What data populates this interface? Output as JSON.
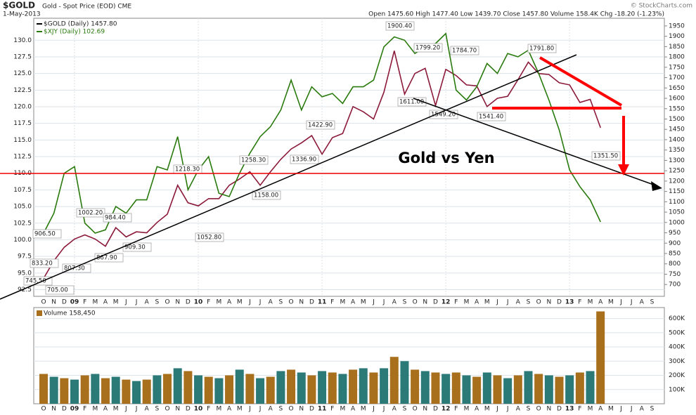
{
  "chart_data": [
    {
      "type": "line",
      "title": "$GOLD",
      "subtitle": "Gold - Spot Price (EOD) CME",
      "date": "1-May-2013",
      "quote": "Open 1475.60  High 1477.40  Low 1439.70  Close 1457.80  Volume 158.4K  Chg -18.20 (-1.23%)",
      "credit": "© StockCharts.com",
      "annotation": "Gold vs Yen",
      "categories": [
        "O",
        "N",
        "D",
        "09",
        "F",
        "M",
        "A",
        "M",
        "J",
        "J",
        "A",
        "S",
        "O",
        "N",
        "D",
        "10",
        "F",
        "M",
        "A",
        "M",
        "J",
        "J",
        "A",
        "S",
        "O",
        "N",
        "D",
        "11",
        "F",
        "M",
        "A",
        "M",
        "J",
        "J",
        "A",
        "S",
        "O",
        "N",
        "D",
        "12",
        "F",
        "M",
        "A",
        "M",
        "J",
        "J",
        "A",
        "S",
        "O",
        "N",
        "D",
        "13",
        "F",
        "M",
        "A",
        "M",
        "J",
        "J",
        "A",
        "S"
      ],
      "series": [
        {
          "name": "$GOLD (Daily) 1457.80",
          "color": "#8b1a3a",
          "axis": "y2",
          "values": [
            730,
            815,
            880,
            920,
            940,
            920,
            885,
            975,
            930,
            955,
            950,
            1000,
            1040,
            1180,
            1095,
            1080,
            1115,
            1115,
            1180,
            1210,
            1245,
            1180,
            1245,
            1305,
            1355,
            1385,
            1420,
            1330,
            1410,
            1430,
            1560,
            1535,
            1500,
            1630,
            1830,
            1620,
            1720,
            1745,
            1565,
            1740,
            1710,
            1665,
            1660,
            1560,
            1600,
            1610,
            1690,
            1775,
            1720,
            1715,
            1675,
            1665,
            1580,
            1595,
            1457.8,
            null,
            null,
            null,
            null,
            null
          ]
        },
        {
          "name": "$XJY (Daily) 102.69",
          "color": "#2a7a0e",
          "values": [
            101,
            104,
            110,
            111,
            102.5,
            101,
            101.5,
            105,
            104,
            106,
            106,
            111,
            110.5,
            115.5,
            107.5,
            110.5,
            112.5,
            107,
            106.5,
            110,
            113,
            115.5,
            117,
            119.5,
            124,
            119.5,
            123,
            121.5,
            122,
            120.5,
            123,
            123,
            124,
            129,
            130.5,
            130,
            128,
            129,
            129.5,
            131,
            122.5,
            121,
            123,
            126.5,
            125,
            128,
            127.5,
            128.5,
            125,
            121,
            116.5,
            110.5,
            108,
            106,
            102.69,
            null,
            null,
            null,
            null,
            null
          ]
        }
      ],
      "ylim": [
        91.5,
        133.3
      ],
      "yticks": [
        {
          "value": 92.5,
          "label": "92.5"
        },
        {
          "value": 95,
          "label": "95.0"
        },
        {
          "value": 97.5,
          "label": "97.5"
        },
        {
          "value": 100,
          "label": "100.0"
        },
        {
          "value": 102.5,
          "label": "102.5"
        },
        {
          "value": 105,
          "label": "105.0"
        },
        {
          "value": 107.5,
          "label": "107.5"
        },
        {
          "value": 110,
          "label": "110.0"
        },
        {
          "value": 112.5,
          "label": "112.5"
        },
        {
          "value": 115,
          "label": "115.0"
        },
        {
          "value": 117.5,
          "label": "117.5"
        },
        {
          "value": 120,
          "label": "120.0"
        },
        {
          "value": 122.5,
          "label": "122.5"
        },
        {
          "value": 125,
          "label": "125.0"
        },
        {
          "value": 127.5,
          "label": "127.5"
        },
        {
          "value": 130,
          "label": "130.0"
        }
      ],
      "y2lim": [
        643,
        1987
      ],
      "y2ticks": [
        700,
        750,
        800,
        850,
        900,
        950,
        1000,
        1050,
        1100,
        1150,
        1200,
        1250,
        1300,
        1350,
        1400,
        1450,
        1500,
        1550,
        1600,
        1650,
        1700,
        1750,
        1800,
        1850,
        1900,
        1950
      ],
      "point_labels": [
        {
          "value": 906.5,
          "label": "906.50"
        },
        {
          "value": 833.2,
          "label": "833.20"
        },
        {
          "value": 745.5,
          "label": "745.50"
        },
        {
          "value": 705,
          "label": "705.00"
        },
        {
          "value": 807.3,
          "label": "807.30"
        },
        {
          "value": 1002.2,
          "label": "1002.20"
        },
        {
          "value": 984.4,
          "label": "984.40"
        },
        {
          "value": 867.9,
          "label": "867.90"
        },
        {
          "value": 909.3,
          "label": "909.30"
        },
        {
          "value": 1218.3,
          "label": "1218.30"
        },
        {
          "value": 1052.8,
          "label": "1052.80"
        },
        {
          "value": 1258.3,
          "label": "1258.30"
        },
        {
          "value": 1158,
          "label": "1158.00"
        },
        {
          "value": 1422.9,
          "label": "1422.90"
        },
        {
          "value": 1336.9,
          "label": "1336.90"
        },
        {
          "value": 1900.4,
          "label": "1900.40"
        },
        {
          "value": 1799.2,
          "label": "1799.20"
        },
        {
          "value": 1784.7,
          "label": "1784.70"
        },
        {
          "value": 1611,
          "label": "1611.00"
        },
        {
          "value": 1549.2,
          "label": "1549.20"
        },
        {
          "value": 1541.4,
          "label": "1541.40"
        },
        {
          "value": 1791.8,
          "label": "1791.80"
        },
        {
          "value": 1351.5,
          "label": "1351.50"
        }
      ],
      "grid": true
    },
    {
      "type": "bar",
      "categories": [
        "O",
        "N",
        "D",
        "09",
        "F",
        "M",
        "A",
        "M",
        "J",
        "J",
        "A",
        "S",
        "O",
        "N",
        "D",
        "10",
        "F",
        "M",
        "A",
        "M",
        "J",
        "J",
        "A",
        "S",
        "O",
        "N",
        "D",
        "11",
        "F",
        "M",
        "A",
        "M",
        "J",
        "J",
        "A",
        "S",
        "O",
        "N",
        "D",
        "12",
        "F",
        "M",
        "A",
        "M",
        "J",
        "J",
        "A",
        "S",
        "O",
        "N",
        "D",
        "13",
        "F",
        "M",
        "A",
        "M",
        "J",
        "J",
        "A",
        "S"
      ],
      "series": [
        {
          "name": "Volume 158,450",
          "color": "#a8701c",
          "values": [
            210000,
            190000,
            180000,
            170000,
            200000,
            210000,
            180000,
            190000,
            170000,
            160000,
            170000,
            200000,
            210000,
            250000,
            230000,
            200000,
            190000,
            180000,
            200000,
            240000,
            210000,
            180000,
            190000,
            230000,
            240000,
            220000,
            200000,
            230000,
            220000,
            210000,
            240000,
            250000,
            220000,
            250000,
            330000,
            300000,
            240000,
            230000,
            220000,
            210000,
            220000,
            200000,
            190000,
            220000,
            200000,
            180000,
            200000,
            230000,
            210000,
            200000,
            190000,
            200000,
            220000,
            230000,
            650000,
            null,
            null,
            null,
            null,
            null
          ]
        }
      ],
      "ylim": [
        0,
        677000
      ],
      "yticks": [
        {
          "value": 100000,
          "label": "100K"
        },
        {
          "value": 200000,
          "label": "200K"
        },
        {
          "value": 300000,
          "label": "300K"
        },
        {
          "value": 400000,
          "label": "400K"
        },
        {
          "value": 500000,
          "label": "500K"
        },
        {
          "value": 600000,
          "label": "600K"
        }
      ],
      "grid": true
    }
  ]
}
